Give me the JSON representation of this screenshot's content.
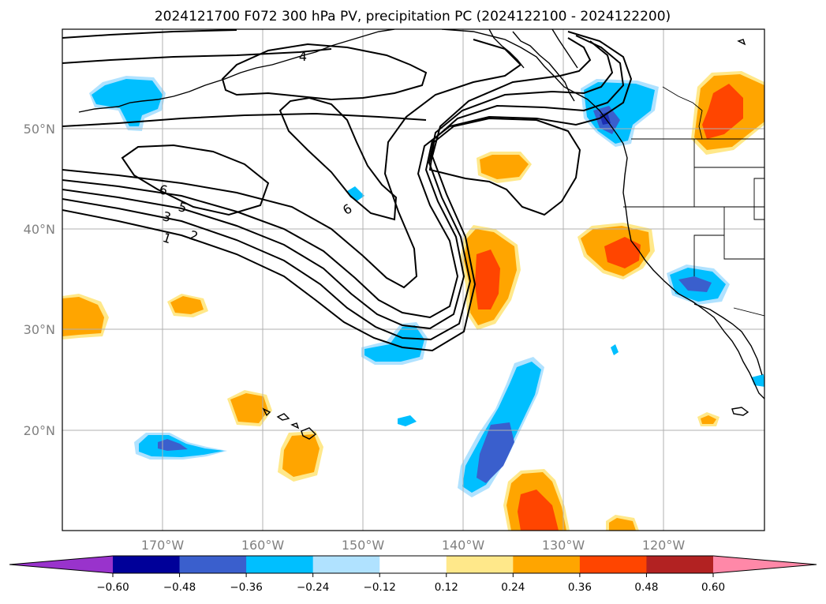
{
  "chart_data": {
    "type": "heatmap",
    "title": "2024121700 F072 300 hPa PV, precipitation PC (2024122100 - 2024122200)",
    "x_ticks": [
      "170°W",
      "160°W",
      "150°W",
      "140°W",
      "130°W",
      "120°W"
    ],
    "y_ticks": [
      "50°N",
      "40°N",
      "30°N",
      "20°N"
    ],
    "xlim": [
      -180,
      -110
    ],
    "ylim": [
      10,
      60
    ],
    "grid": true,
    "colorbar": {
      "ticks": [
        "−0.60",
        "−0.48",
        "−0.36",
        "−0.24",
        "−0.12",
        "0.12",
        "0.24",
        "0.36",
        "0.48",
        "0.60"
      ],
      "colors": [
        "#9933cc",
        "#000099",
        "#3a5fcd",
        "#00bfff",
        "#b0e2ff",
        "#ffffff",
        "#ffe88a",
        "#ffa500",
        "#ff4500",
        "#b22222",
        "#ff88a8"
      ]
    },
    "contour_labels": [
      "1",
      "2",
      "3",
      "5",
      "6",
      "6",
      "4"
    ],
    "precip_anomalies": [
      {
        "lon": -172,
        "lat": 53,
        "level": -0.36
      },
      {
        "lon": -166,
        "lat": 18,
        "level": -0.48
      },
      {
        "lon": -135,
        "lat": 20,
        "level": -0.48
      },
      {
        "lon": -146,
        "lat": 30,
        "level": -0.36
      },
      {
        "lon": -125,
        "lat": 52,
        "level": -0.48
      },
      {
        "lon": -116,
        "lat": 35,
        "level": -0.48
      },
      {
        "lon": -175,
        "lat": 31,
        "level": 0.24
      },
      {
        "lon": -168,
        "lat": 32,
        "level": 0.24
      },
      {
        "lon": -161,
        "lat": 22,
        "level": 0.24
      },
      {
        "lon": -157,
        "lat": 17,
        "level": 0.24
      },
      {
        "lon": -138,
        "lat": 35,
        "level": 0.36
      },
      {
        "lon": -136,
        "lat": 46,
        "level": 0.24
      },
      {
        "lon": -125,
        "lat": 38,
        "level": 0.36
      },
      {
        "lon": -113,
        "lat": 52,
        "level": 0.48
      },
      {
        "lon": -132,
        "lat": 12,
        "level": 0.36
      },
      {
        "lon": -124,
        "lat": 11,
        "level": 0.24
      }
    ]
  }
}
